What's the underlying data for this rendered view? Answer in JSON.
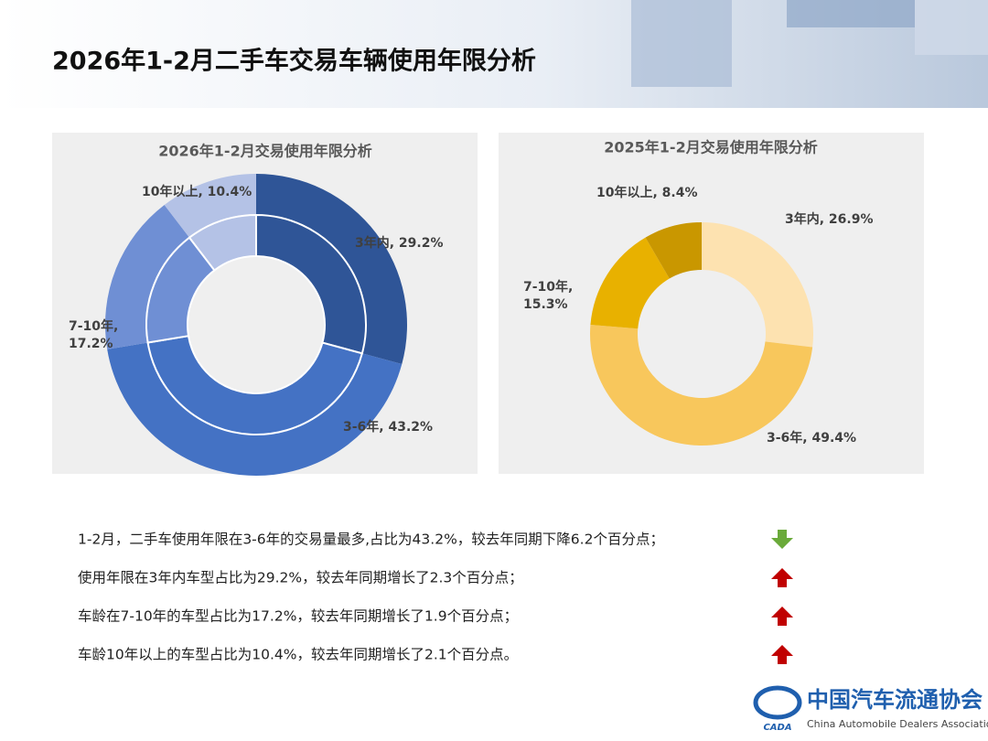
{
  "header": {
    "title": "2026年1-2月二手车交易车辆使用年限分析"
  },
  "chart_data": [
    {
      "type": "pie",
      "title": "2026年1-2月交易使用年限分析",
      "values": [
        29.2,
        43.2,
        17.2,
        10.4
      ],
      "value_labels": [
        [
          "3年内, 29.2%"
        ],
        [
          "3-6年, 43.2%"
        ],
        [
          "7-10年,",
          "17.2%"
        ],
        [
          "10年以上, 10.4%"
        ]
      ],
      "colors": [
        "#2f5597",
        "#4472c4",
        "#6f8fd4",
        "#b4c2e6"
      ]
    },
    {
      "type": "pie",
      "title": "2025年1-2月交易使用年限分析",
      "values": [
        26.9,
        49.4,
        15.3,
        8.4
      ],
      "value_labels": [
        [
          "3年内, 26.9%"
        ],
        [
          "3-6年, 49.4%"
        ],
        [
          "7-10年,",
          "15.3%"
        ],
        [
          "10年以上, 8.4%"
        ]
      ],
      "colors": [
        "#fde2b0",
        "#f8c75c",
        "#e8b100",
        "#c99700"
      ]
    }
  ],
  "notes": [
    {
      "text": "1-2月，二手车使用年限在3-6年的交易量最多,占比为43.2%，较去年同期下降6.2个百分点；",
      "trend": "down"
    },
    {
      "text": "使用年限在3年内车型占比为29.2%，较去年同期增长了2.3个百分点；",
      "trend": "up"
    },
    {
      "text": "车龄在7-10年的车型占比为17.2%，较去年同期增长了1.9个百分点；",
      "trend": "up"
    },
    {
      "text": "车龄10年以上的车型占比为10.4%，较去年同期增长了2.1个百分点。",
      "trend": "up"
    }
  ],
  "logo": {
    "name": "中国汽车流通协会",
    "english": "China Automobile Dealers Association",
    "short": "CADA"
  }
}
